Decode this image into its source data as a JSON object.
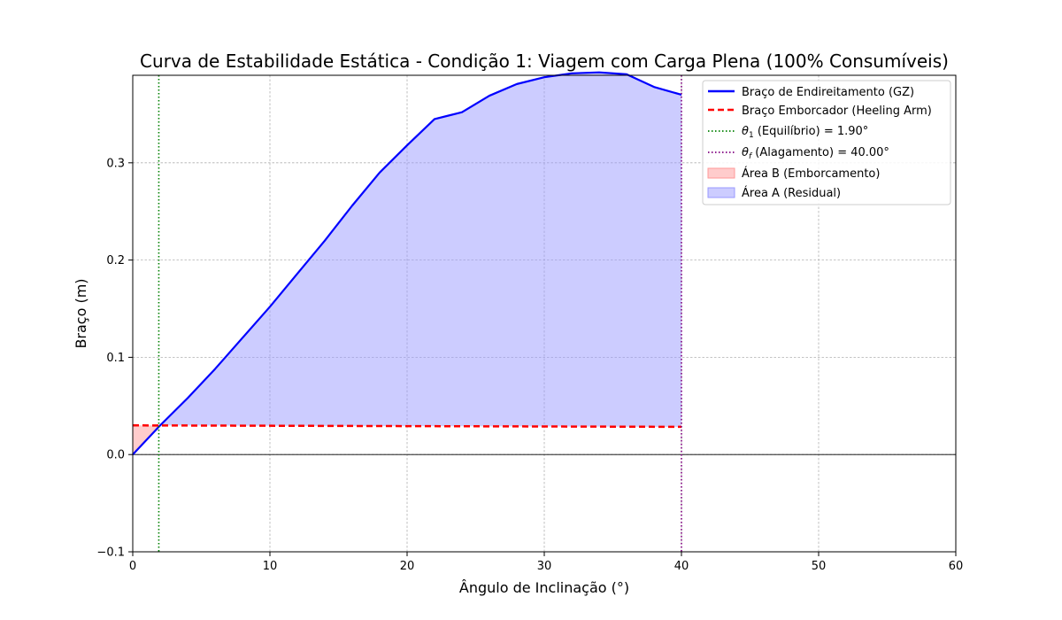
{
  "chart_data": {
    "type": "line",
    "title": "Curva de Estabilidade Estática - Condição 1: Viagem com Carga Plena (100% Consumíveis)",
    "xlabel": "Ângulo de Inclinação (°)",
    "ylabel": "Braço (m)",
    "xlim": [
      0,
      60
    ],
    "ylim": [
      -0.1,
      0.39
    ],
    "x_ticks": [
      0,
      10,
      20,
      30,
      40,
      50,
      60
    ],
    "y_ticks": [
      -0.1,
      0.0,
      0.1,
      0.2,
      0.3
    ],
    "x_tick_labels": [
      "0",
      "10",
      "20",
      "30",
      "40",
      "50",
      "60"
    ],
    "y_tick_labels": [
      "−0.1",
      "0.0",
      "0.1",
      "0.2",
      "0.3"
    ],
    "grid": true,
    "legend_position": "top-right",
    "series": [
      {
        "name": "Braço de Endireitamento (GZ)",
        "color": "#0000ff",
        "style": "solid",
        "x": [
          0,
          2,
          4,
          6,
          8,
          10,
          12,
          14,
          16,
          18,
          20,
          22,
          24,
          26,
          28,
          30,
          32,
          34,
          36,
          38,
          40
        ],
        "y": [
          0.0,
          0.03,
          0.058,
          0.088,
          0.12,
          0.152,
          0.186,
          0.22,
          0.256,
          0.29,
          0.318,
          0.345,
          0.352,
          0.369,
          0.381,
          0.388,
          0.392,
          0.393,
          0.391,
          0.378,
          0.37
        ]
      },
      {
        "name": "Braço Emborcador (Heeling Arm)",
        "color": "#ff0000",
        "style": "dashed",
        "x": [
          0,
          40
        ],
        "y": [
          0.03,
          0.0285
        ]
      }
    ],
    "vertical_lines": [
      {
        "name": "θ1 (Equilíbrio) = 1.90°",
        "x": 1.9,
        "color": "#008000",
        "style": "dotted"
      },
      {
        "name": "θf (Alagamento) = 40.00°",
        "x": 40.0,
        "color": "#800080",
        "style": "dotted"
      }
    ],
    "areas": [
      {
        "name": "Área B (Emborcamento)",
        "color": "#ff9999",
        "x_range": [
          0,
          1.9
        ]
      },
      {
        "name": "Área A (Residual)",
        "color": "#9999ff",
        "x_range": [
          1.9,
          40
        ]
      }
    ],
    "legend": {
      "gz": "Braço de Endireitamento (GZ)",
      "heel": "Braço Emborcador (Heeling Arm)",
      "theta1_symbol": "θ",
      "theta1_sub": "1",
      "theta1_rest": " (Equilíbrio) = 1.90°",
      "thetaf_symbol": "θ",
      "thetaf_sub": "f",
      "thetaf_rest": " (Alagamento) = 40.00°",
      "area_b": "Área B (Emborcamento)",
      "area_a": "Área A (Residual)"
    }
  }
}
